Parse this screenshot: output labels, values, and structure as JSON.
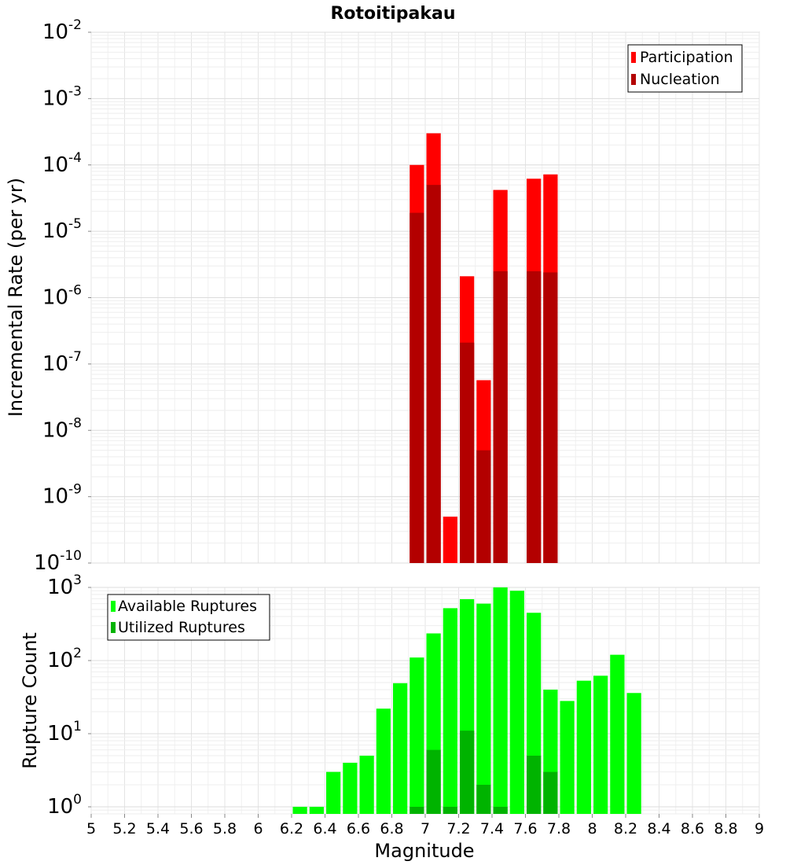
{
  "chart_data": [
    {
      "type": "bar",
      "title": "Rotoitipakau",
      "xlabel": "",
      "ylabel": "Incremental Rate (per yr)",
      "y_scale": "log",
      "ylim": [
        1e-10,
        0.01
      ],
      "y_tick_labels": [
        {
          "base": "10",
          "exp": "-10"
        },
        {
          "base": "10",
          "exp": "-9"
        },
        {
          "base": "10",
          "exp": "-8"
        },
        {
          "base": "10",
          "exp": "-7"
        },
        {
          "base": "10",
          "exp": "-6"
        },
        {
          "base": "10",
          "exp": "-5"
        },
        {
          "base": "10",
          "exp": "-4"
        },
        {
          "base": "10",
          "exp": "-3"
        },
        {
          "base": "10",
          "exp": "-2"
        }
      ],
      "xlim": [
        5,
        9
      ],
      "grid": true,
      "legend_position": "top-right",
      "series": [
        {
          "name": "Participation",
          "color": "#ff0000",
          "points": [
            {
              "x": 6.95,
              "y": 0.0001
            },
            {
              "x": 7.05,
              "y": 0.0003
            },
            {
              "x": 7.15,
              "y": 5e-10
            },
            {
              "x": 7.25,
              "y": 2.1e-06
            },
            {
              "x": 7.35,
              "y": 5.7e-08
            },
            {
              "x": 7.45,
              "y": 4.2e-05
            },
            {
              "x": 7.65,
              "y": 6.2e-05
            },
            {
              "x": 7.75,
              "y": 7.2e-05
            }
          ]
        },
        {
          "name": "Nucleation",
          "color": "#b30000",
          "points": [
            {
              "x": 6.95,
              "y": 1.9e-05
            },
            {
              "x": 7.05,
              "y": 5e-05
            },
            {
              "x": 7.25,
              "y": 2.1e-07
            },
            {
              "x": 7.35,
              "y": 5e-09
            },
            {
              "x": 7.45,
              "y": 2.5e-06
            },
            {
              "x": 7.65,
              "y": 2.5e-06
            },
            {
              "x": 7.75,
              "y": 2.4e-06
            }
          ]
        }
      ]
    },
    {
      "type": "bar",
      "title": "",
      "xlabel": "Magnitude",
      "ylabel": "Rupture Count",
      "y_scale": "log",
      "ylim": [
        0.8,
        1000
      ],
      "y_tick_labels": [
        {
          "base": "10",
          "exp": "0"
        },
        {
          "base": "10",
          "exp": "1"
        },
        {
          "base": "10",
          "exp": "2"
        },
        {
          "base": "10",
          "exp": "3"
        }
      ],
      "xlim": [
        5,
        9
      ],
      "x_tick_labels": [
        "5",
        "5.2",
        "5.4",
        "5.6",
        "5.8",
        "6",
        "6.2",
        "6.4",
        "6.6",
        "6.8",
        "7",
        "7.2",
        "7.4",
        "7.6",
        "7.8",
        "8",
        "8.2",
        "8.4",
        "8.6",
        "8.8",
        "9"
      ],
      "grid": true,
      "legend_position": "top-left",
      "series": [
        {
          "name": "Available Ruptures",
          "color": "#00ff00",
          "points": [
            {
              "x": 6.25,
              "y": 1
            },
            {
              "x": 6.35,
              "y": 1
            },
            {
              "x": 6.45,
              "y": 3
            },
            {
              "x": 6.55,
              "y": 4
            },
            {
              "x": 6.65,
              "y": 5
            },
            {
              "x": 6.75,
              "y": 22
            },
            {
              "x": 6.85,
              "y": 49
            },
            {
              "x": 6.95,
              "y": 110
            },
            {
              "x": 7.05,
              "y": 235
            },
            {
              "x": 7.15,
              "y": 520
            },
            {
              "x": 7.25,
              "y": 690
            },
            {
              "x": 7.35,
              "y": 600
            },
            {
              "x": 7.45,
              "y": 1000
            },
            {
              "x": 7.55,
              "y": 900
            },
            {
              "x": 7.65,
              "y": 450
            },
            {
              "x": 7.75,
              "y": 40
            },
            {
              "x": 7.85,
              "y": 28
            },
            {
              "x": 7.95,
              "y": 53
            },
            {
              "x": 8.05,
              "y": 62
            },
            {
              "x": 8.15,
              "y": 120
            },
            {
              "x": 8.25,
              "y": 36
            }
          ]
        },
        {
          "name": "Utilized Ruptures",
          "color": "#00b300",
          "points": [
            {
              "x": 6.95,
              "y": 1
            },
            {
              "x": 7.05,
              "y": 6
            },
            {
              "x": 7.15,
              "y": 1
            },
            {
              "x": 7.25,
              "y": 11
            },
            {
              "x": 7.35,
              "y": 2
            },
            {
              "x": 7.45,
              "y": 1
            },
            {
              "x": 7.65,
              "y": 5
            },
            {
              "x": 7.75,
              "y": 3
            }
          ]
        }
      ]
    }
  ]
}
